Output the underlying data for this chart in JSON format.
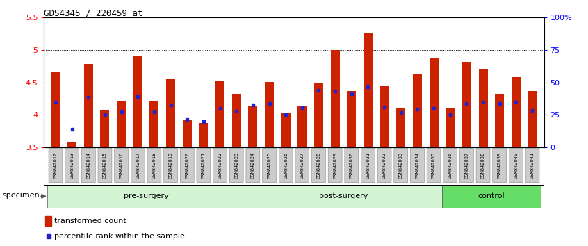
{
  "title": "GDS4345 / 220459_at",
  "samples": [
    "GSM842012",
    "GSM842013",
    "GSM842014",
    "GSM842015",
    "GSM842016",
    "GSM842017",
    "GSM842018",
    "GSM842019",
    "GSM842020",
    "GSM842021",
    "GSM842022",
    "GSM842023",
    "GSM842024",
    "GSM842025",
    "GSM842026",
    "GSM842027",
    "GSM842028",
    "GSM842029",
    "GSM842030",
    "GSM842031",
    "GSM842032",
    "GSM842033",
    "GSM842034",
    "GSM842035",
    "GSM842036",
    "GSM842037",
    "GSM842038",
    "GSM842039",
    "GSM842040",
    "GSM842041"
  ],
  "red_values": [
    4.67,
    3.58,
    4.78,
    4.07,
    4.22,
    4.9,
    4.22,
    4.55,
    3.93,
    3.88,
    4.52,
    4.33,
    4.13,
    4.51,
    4.03,
    4.13,
    4.5,
    5.0,
    4.37,
    5.25,
    4.44,
    4.1,
    4.63,
    4.88,
    4.1,
    4.82,
    4.7,
    4.33,
    4.58,
    4.37
  ],
  "blue_values": [
    4.2,
    3.78,
    4.27,
    4.0,
    4.05,
    4.28,
    4.05,
    4.15,
    3.93,
    3.9,
    4.1,
    4.06,
    4.15,
    4.18,
    4.0,
    4.11,
    4.38,
    4.37,
    4.33,
    4.43,
    4.12,
    4.04,
    4.09,
    4.1,
    4.0,
    4.18,
    4.2,
    4.18,
    4.2,
    4.07
  ],
  "ylim": [
    3.5,
    5.5
  ],
  "yticks_left": [
    3.5,
    4.0,
    4.5,
    5.0,
    5.5
  ],
  "ytick_labels_left": [
    "3.5",
    "4",
    "4.5",
    "5",
    "5.5"
  ],
  "yticks_right_pct": [
    0,
    25,
    50,
    75,
    100
  ],
  "ytick_labels_right": [
    "0",
    "25",
    "50",
    "75",
    "100%"
  ],
  "groups": [
    {
      "label": "pre-surgery",
      "start": 0,
      "end": 12,
      "color": "#d4f5d4"
    },
    {
      "label": "post-surgery",
      "start": 12,
      "end": 24,
      "color": "#d4f5d4"
    },
    {
      "label": "control",
      "start": 24,
      "end": 30,
      "color": "#66dd66"
    }
  ],
  "bar_color_red": "#cc2200",
  "bar_color_blue": "#2222cc",
  "background_color": "#ffffff",
  "bar_width": 0.55,
  "legend_red": "transformed count",
  "legend_blue": "percentile rank within the sample",
  "xtick_bg": "#cccccc"
}
